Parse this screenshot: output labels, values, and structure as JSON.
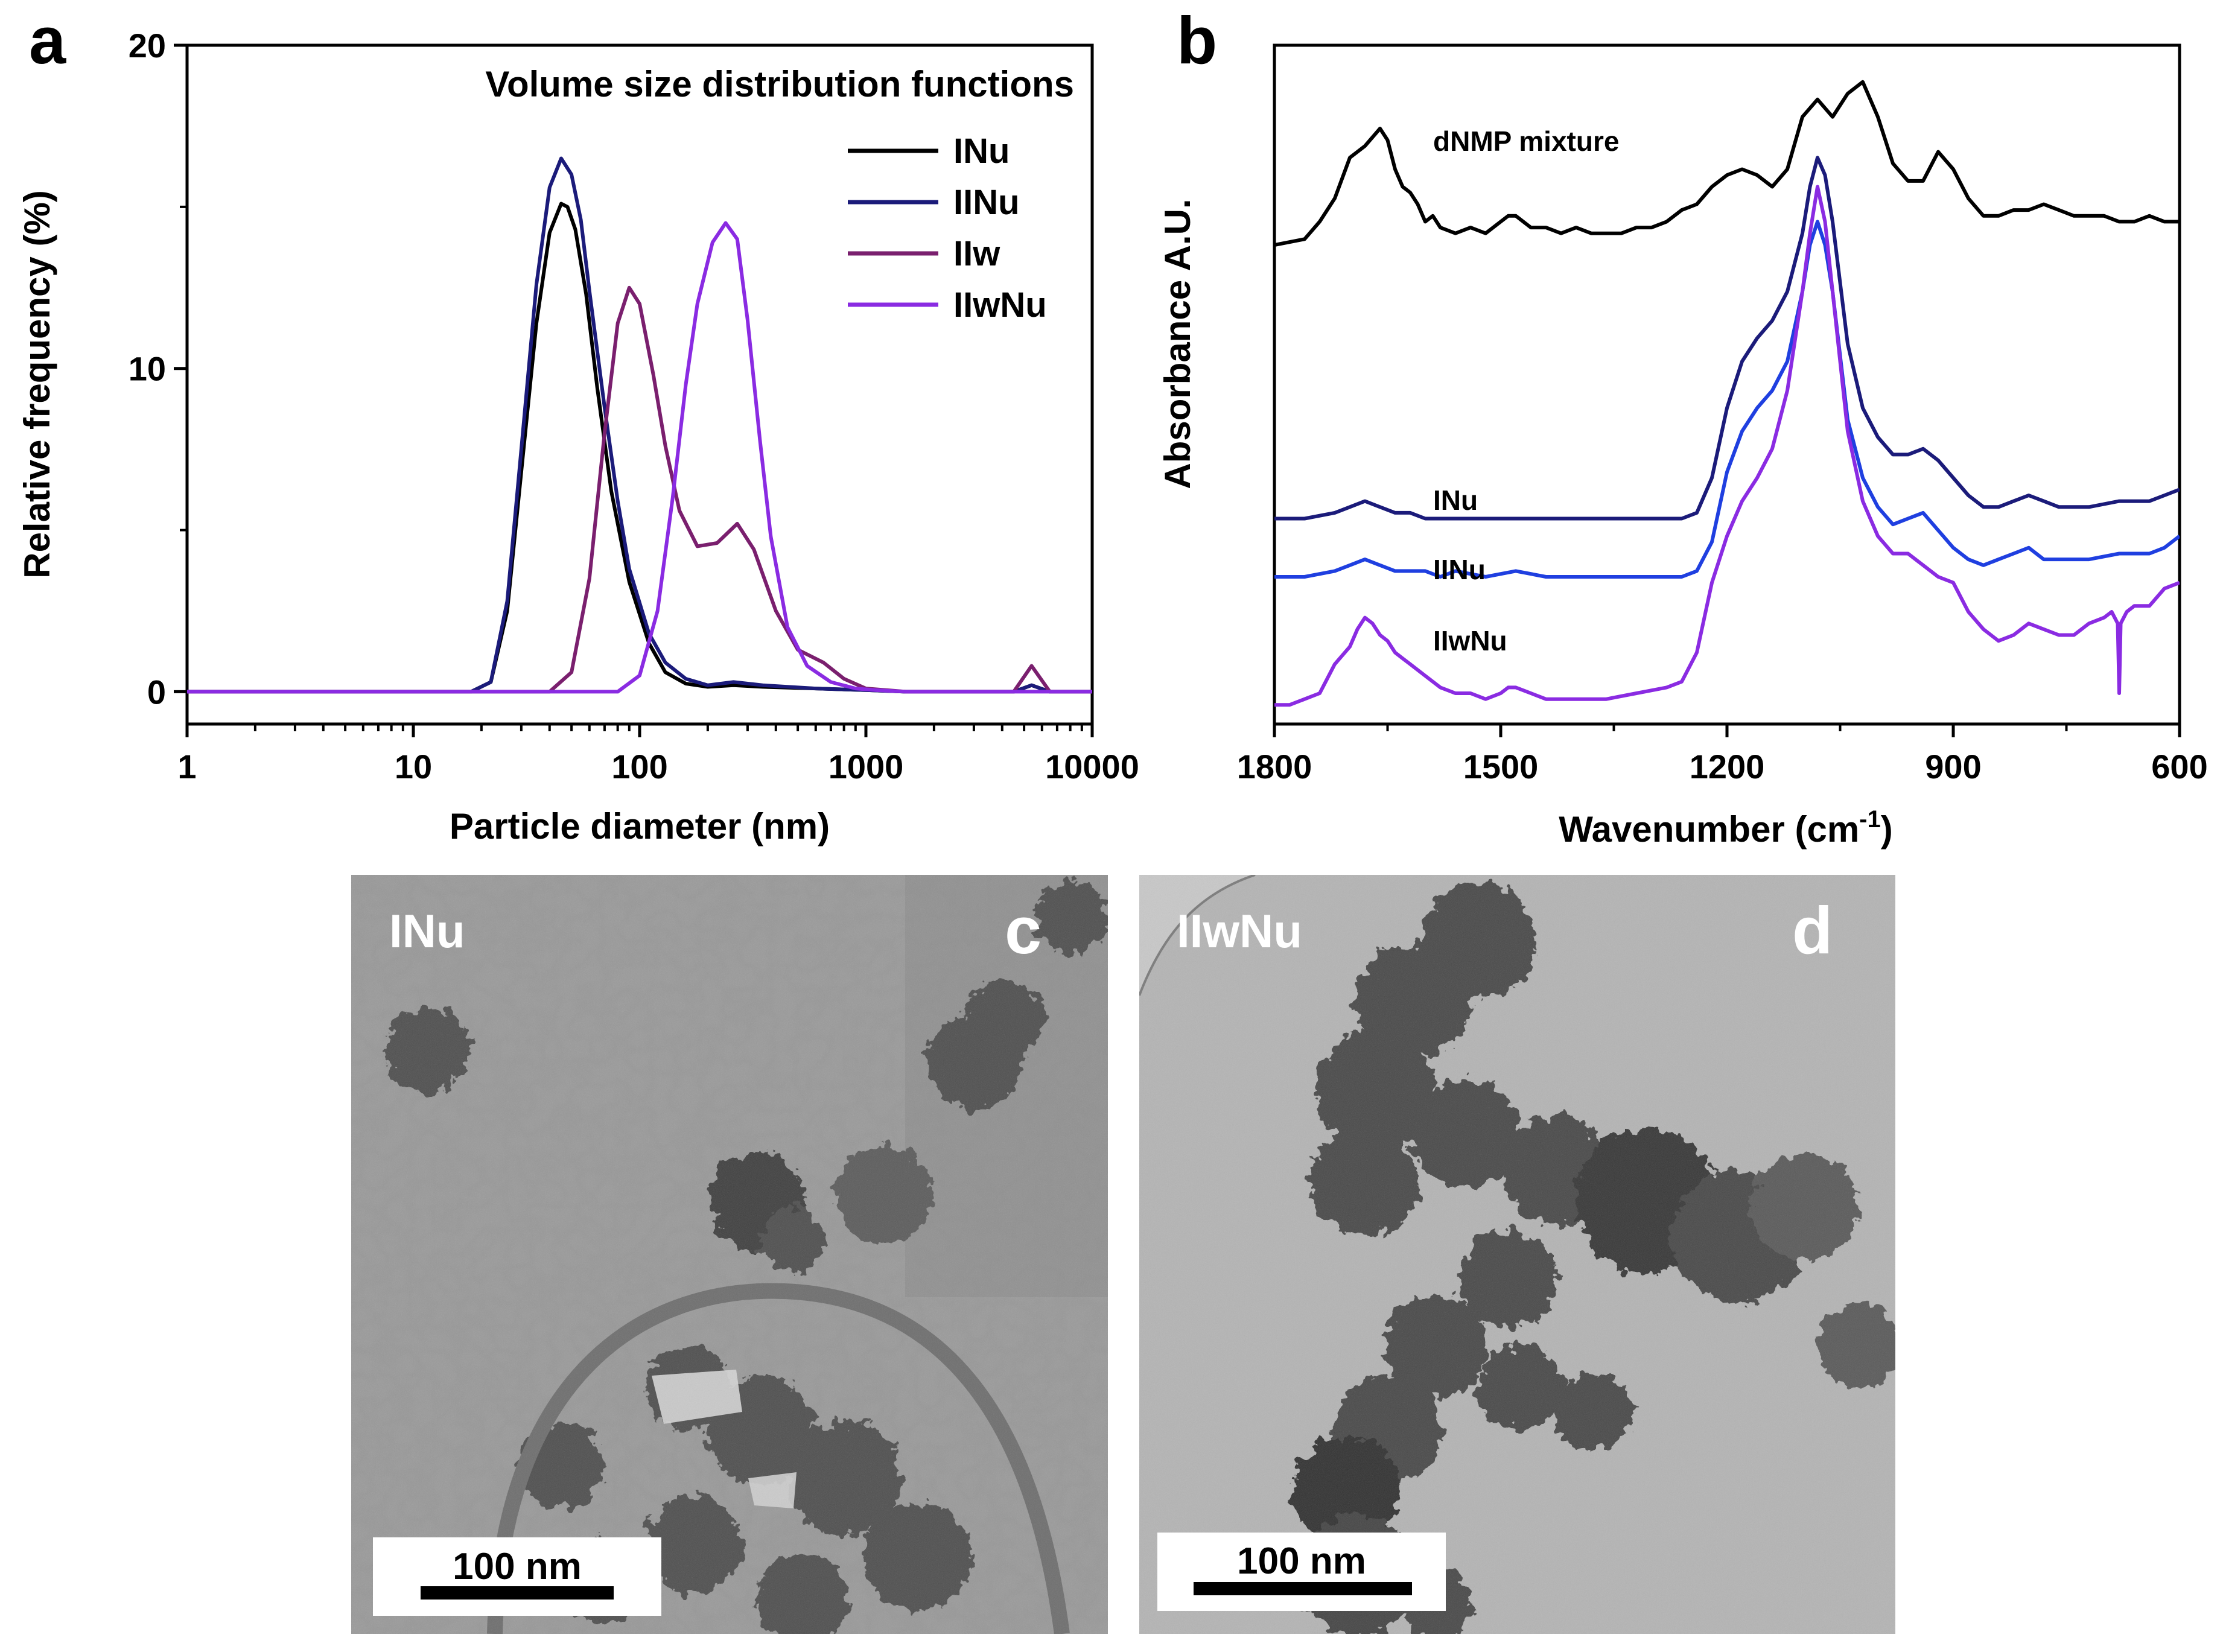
{
  "panels": [
    {
      "letter": "a"
    },
    {
      "letter": "b"
    },
    {
      "letter": "c"
    },
    {
      "letter": "d"
    }
  ],
  "chart_data": [
    {
      "panel": "a",
      "type": "line",
      "title": "Volume size distribution functions",
      "xlabel": "Particle diameter (nm)",
      "ylabel": "Relative frequency (%)",
      "xscale": "log",
      "xlim": [
        1,
        10000
      ],
      "ylim": [
        -1,
        20
      ],
      "xticks": [
        1,
        10,
        100,
        1000,
        10000
      ],
      "xtick_labels": [
        "1",
        "10",
        "100",
        "1000",
        "10000"
      ],
      "yticks": [
        0,
        10,
        20
      ],
      "ytick_labels": [
        "0",
        "10",
        "20"
      ],
      "legend_position": "top-right",
      "series": [
        {
          "name": "INu",
          "color": "#000000",
          "x": [
            1,
            18,
            22,
            26,
            30,
            35,
            40,
            45,
            48,
            52,
            58,
            65,
            75,
            90,
            110,
            130,
            160,
            200,
            260,
            350,
            600,
            1000,
            1500,
            4500,
            5400,
            6500,
            10000
          ],
          "y": [
            0,
            0,
            0.3,
            2.5,
            6.8,
            11.4,
            14.2,
            15.1,
            15.0,
            14.3,
            12.3,
            9.4,
            6.2,
            3.4,
            1.5,
            0.6,
            0.25,
            0.15,
            0.2,
            0.15,
            0.1,
            0.05,
            0,
            0,
            0.2,
            0,
            0
          ]
        },
        {
          "name": "IINu",
          "color": "#1b1b7a",
          "x": [
            1,
            18,
            22,
            26,
            30,
            35,
            40,
            45,
            50,
            55,
            60,
            70,
            80,
            90,
            110,
            130,
            160,
            200,
            260,
            350,
            600,
            1000,
            1500,
            4500,
            5400,
            6500,
            10000
          ],
          "y": [
            0,
            0,
            0.3,
            2.8,
            7.5,
            12.6,
            15.6,
            16.5,
            16.0,
            14.6,
            12.4,
            8.8,
            5.9,
            3.8,
            1.8,
            0.9,
            0.4,
            0.2,
            0.3,
            0.2,
            0.1,
            0.05,
            0,
            0,
            0.2,
            0,
            0
          ]
        },
        {
          "name": "IIw",
          "color": "#7a1f6e",
          "x": [
            1,
            40,
            50,
            60,
            70,
            80,
            90,
            100,
            115,
            130,
            150,
            180,
            220,
            270,
            320,
            400,
            500,
            650,
            800,
            1000,
            1500,
            4500,
            5400,
            6500,
            10000
          ],
          "y": [
            0,
            0,
            0.6,
            3.5,
            8.0,
            11.4,
            12.5,
            12.0,
            9.8,
            7.6,
            5.6,
            4.5,
            4.6,
            5.2,
            4.4,
            2.5,
            1.3,
            0.9,
            0.4,
            0.1,
            0,
            0,
            0.8,
            0,
            0
          ]
        },
        {
          "name": "IIwNu",
          "color": "#8a2be2",
          "x": [
            1,
            80,
            100,
            120,
            140,
            160,
            180,
            210,
            240,
            270,
            300,
            340,
            380,
            450,
            550,
            700,
            900,
            1100,
            1500,
            10000
          ],
          "y": [
            0,
            0,
            0.5,
            2.5,
            6.0,
            9.5,
            12.0,
            13.9,
            14.5,
            14.0,
            11.5,
            7.8,
            4.8,
            2.0,
            0.8,
            0.3,
            0.1,
            0.05,
            0,
            0
          ]
        }
      ]
    },
    {
      "panel": "b",
      "type": "line",
      "xlabel": "Wavenumber (cm",
      "xlabel_sup": "-1",
      "xlabel_suffix": ")",
      "ylabel": "Absorbance A.U.",
      "xlim": [
        1800,
        600
      ],
      "ylim": [
        0,
        1
      ],
      "xticks": [
        1800,
        1500,
        1200,
        900,
        600
      ],
      "xtick_labels": [
        "1800",
        "1500",
        "1200",
        "900",
        "600"
      ],
      "series": [
        {
          "name": "dNMP mixture",
          "color": "#000000",
          "x": [
            1800,
            1760,
            1740,
            1720,
            1700,
            1680,
            1660,
            1650,
            1640,
            1630,
            1620,
            1610,
            1600,
            1590,
            1580,
            1560,
            1540,
            1520,
            1500,
            1490,
            1480,
            1460,
            1440,
            1420,
            1400,
            1380,
            1360,
            1340,
            1320,
            1300,
            1280,
            1260,
            1240,
            1220,
            1200,
            1180,
            1160,
            1140,
            1120,
            1100,
            1080,
            1060,
            1040,
            1020,
            1000,
            980,
            960,
            940,
            920,
            900,
            880,
            860,
            840,
            820,
            800,
            780,
            760,
            740,
            720,
            700,
            680,
            660,
            640,
            620,
            600
          ],
          "y": [
            0.8,
            0.81,
            0.84,
            0.88,
            0.95,
            0.97,
            1.0,
            0.98,
            0.93,
            0.9,
            0.89,
            0.87,
            0.84,
            0.85,
            0.83,
            0.82,
            0.83,
            0.82,
            0.84,
            0.85,
            0.85,
            0.83,
            0.83,
            0.82,
            0.83,
            0.82,
            0.82,
            0.82,
            0.83,
            0.83,
            0.84,
            0.86,
            0.87,
            0.9,
            0.92,
            0.93,
            0.92,
            0.9,
            0.93,
            1.02,
            1.05,
            1.02,
            1.06,
            1.08,
            1.02,
            0.94,
            0.91,
            0.91,
            0.96,
            0.93,
            0.88,
            0.85,
            0.85,
            0.86,
            0.86,
            0.87,
            0.86,
            0.85,
            0.85,
            0.85,
            0.84,
            0.84,
            0.85,
            0.84,
            0.84
          ]
        },
        {
          "name": "INu",
          "color": "#1b1b7a",
          "x": [
            1800,
            1760,
            1720,
            1700,
            1680,
            1660,
            1640,
            1620,
            1600,
            1580,
            1560,
            1520,
            1480,
            1440,
            1400,
            1360,
            1320,
            1280,
            1260,
            1240,
            1220,
            1200,
            1180,
            1160,
            1140,
            1120,
            1100,
            1090,
            1080,
            1070,
            1060,
            1040,
            1020,
            1000,
            980,
            960,
            940,
            920,
            900,
            880,
            860,
            840,
            820,
            800,
            780,
            760,
            720,
            680,
            640,
            620,
            600
          ],
          "y": [
            0.33,
            0.33,
            0.34,
            0.35,
            0.36,
            0.35,
            0.34,
            0.34,
            0.33,
            0.33,
            0.33,
            0.33,
            0.33,
            0.33,
            0.33,
            0.33,
            0.33,
            0.33,
            0.33,
            0.34,
            0.4,
            0.52,
            0.6,
            0.64,
            0.67,
            0.72,
            0.82,
            0.9,
            0.95,
            0.92,
            0.84,
            0.63,
            0.52,
            0.47,
            0.44,
            0.44,
            0.45,
            0.43,
            0.4,
            0.37,
            0.35,
            0.35,
            0.36,
            0.37,
            0.36,
            0.35,
            0.35,
            0.36,
            0.36,
            0.37,
            0.38
          ]
        },
        {
          "name": "IINu",
          "color": "#1f3fe0",
          "x": [
            1800,
            1760,
            1720,
            1700,
            1680,
            1660,
            1640,
            1620,
            1600,
            1580,
            1560,
            1520,
            1480,
            1440,
            1400,
            1360,
            1320,
            1280,
            1260,
            1240,
            1220,
            1200,
            1180,
            1160,
            1140,
            1120,
            1100,
            1090,
            1080,
            1070,
            1060,
            1040,
            1020,
            1000,
            980,
            960,
            940,
            920,
            900,
            880,
            860,
            840,
            820,
            800,
            780,
            760,
            720,
            680,
            640,
            620,
            600
          ],
          "y": [
            0.23,
            0.23,
            0.24,
            0.25,
            0.26,
            0.25,
            0.24,
            0.24,
            0.24,
            0.23,
            0.24,
            0.23,
            0.24,
            0.23,
            0.23,
            0.23,
            0.23,
            0.23,
            0.23,
            0.24,
            0.29,
            0.41,
            0.48,
            0.52,
            0.55,
            0.6,
            0.72,
            0.8,
            0.84,
            0.8,
            0.72,
            0.5,
            0.4,
            0.35,
            0.32,
            0.33,
            0.34,
            0.31,
            0.28,
            0.26,
            0.25,
            0.26,
            0.27,
            0.28,
            0.26,
            0.26,
            0.26,
            0.27,
            0.27,
            0.28,
            0.3
          ]
        },
        {
          "name": "IIwNu",
          "color": "#8a2be2",
          "x": [
            1800,
            1780,
            1760,
            1740,
            1720,
            1700,
            1690,
            1680,
            1670,
            1660,
            1650,
            1640,
            1630,
            1620,
            1600,
            1580,
            1560,
            1540,
            1520,
            1500,
            1490,
            1480,
            1460,
            1440,
            1420,
            1400,
            1360,
            1320,
            1280,
            1260,
            1240,
            1220,
            1200,
            1180,
            1160,
            1140,
            1120,
            1100,
            1090,
            1080,
            1070,
            1060,
            1040,
            1020,
            1000,
            980,
            960,
            940,
            920,
            900,
            880,
            860,
            840,
            820,
            800,
            780,
            760,
            740,
            720,
            700,
            690,
            682,
            680,
            678,
            670,
            660,
            640,
            620,
            600
          ],
          "y": [
            0.01,
            0.01,
            0.02,
            0.03,
            0.08,
            0.11,
            0.14,
            0.16,
            0.15,
            0.13,
            0.12,
            0.1,
            0.09,
            0.08,
            0.06,
            0.04,
            0.03,
            0.03,
            0.02,
            0.03,
            0.04,
            0.04,
            0.03,
            0.02,
            0.02,
            0.02,
            0.02,
            0.03,
            0.04,
            0.05,
            0.1,
            0.22,
            0.3,
            0.36,
            0.4,
            0.45,
            0.55,
            0.72,
            0.82,
            0.9,
            0.84,
            0.72,
            0.48,
            0.36,
            0.3,
            0.27,
            0.27,
            0.25,
            0.23,
            0.22,
            0.17,
            0.14,
            0.12,
            0.13,
            0.15,
            0.14,
            0.13,
            0.13,
            0.15,
            0.16,
            0.17,
            0.15,
            0.03,
            0.15,
            0.17,
            0.18,
            0.18,
            0.21,
            0.22
          ]
        }
      ],
      "annotations": [
        "dNMP mixture",
        "INu",
        "IINu",
        "IIwNu"
      ]
    }
  ],
  "micrographs": [
    {
      "panel": "c",
      "label": "INu",
      "scale_bar": "100 nm"
    },
    {
      "panel": "d",
      "label": "IIwNu",
      "scale_bar": "100 nm"
    }
  ]
}
